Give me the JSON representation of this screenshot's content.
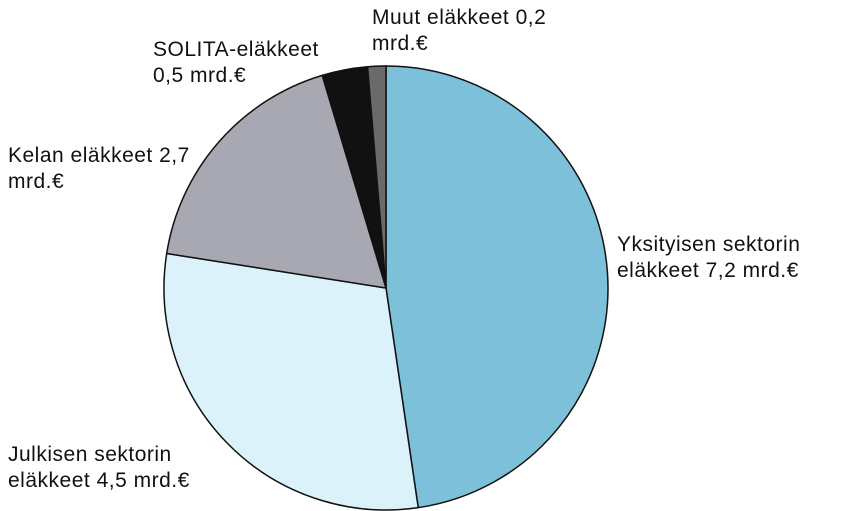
{
  "chart_data": {
    "type": "pie",
    "categories": [
      "Yksityisen sektorin eläkkeet",
      "Julkisen sektorin eläkkeet",
      "Kelan eläkkeet",
      "SOLITA-eläkkeet",
      "Muut eläkkeet"
    ],
    "values": [
      7.2,
      4.5,
      2.7,
      0.5,
      0.2
    ],
    "value_labels": [
      "7,2 mrd.€",
      "4,5 mrd.€",
      "2,7 mrd.€",
      "0,5 mrd.€",
      "0,2 mrd.€"
    ],
    "colors": [
      "#7cc0da",
      "#dcf2fa",
      "#a8a8b2",
      "#111111",
      "#6a6a6a"
    ]
  }
}
